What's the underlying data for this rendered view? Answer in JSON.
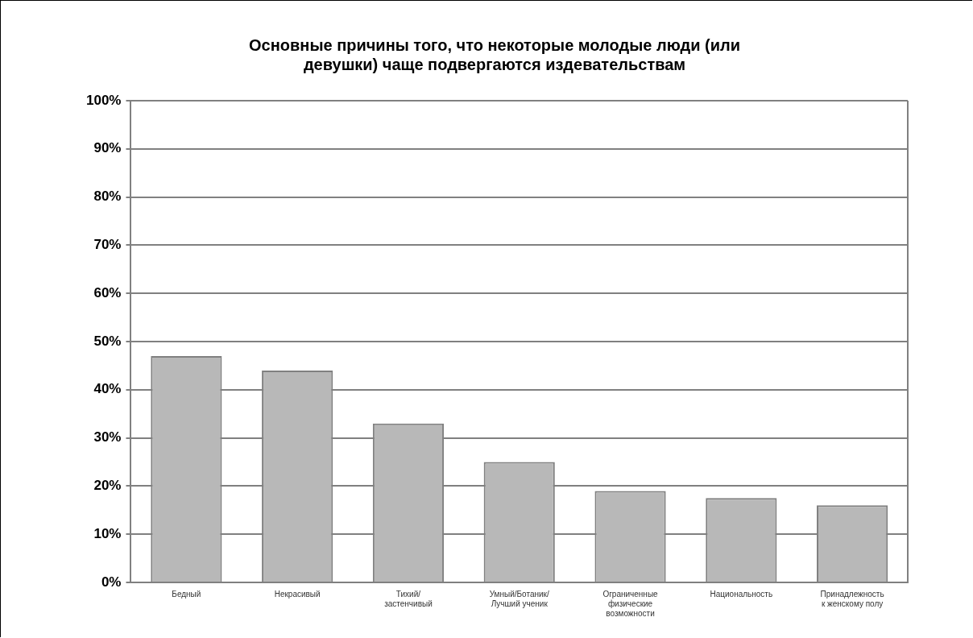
{
  "chart_data": {
    "type": "bar",
    "title": [
      "Основные причины того, что некоторые молодые люди (или",
      "девушки) чаще подвергаются издевательствам"
    ],
    "categories": [
      [
        "Бедный"
      ],
      [
        "Некрасивый"
      ],
      [
        "Тихий/",
        "застенчивый"
      ],
      [
        "Умный/Ботаник/",
        "Лучший ученик"
      ],
      [
        "Ограниченные",
        "физические",
        "возможности"
      ],
      [
        "Национальность"
      ],
      [
        "Принадлежность",
        "к женскому полу"
      ]
    ],
    "values": [
      47,
      44,
      33,
      25,
      19,
      17.5,
      16
    ],
    "color": "#b8b8b8",
    "ylim": [
      0,
      100
    ],
    "yticks": [
      {
        "value": 0,
        "label": "0%"
      },
      {
        "value": 10,
        "label": "10%"
      },
      {
        "value": 20,
        "label": "20%"
      },
      {
        "value": 30,
        "label": "30%"
      },
      {
        "value": 40,
        "label": "40%"
      },
      {
        "value": 50,
        "label": "50%"
      },
      {
        "value": 60,
        "label": "60%"
      },
      {
        "value": 70,
        "label": "70%"
      },
      {
        "value": 80,
        "label": "80%"
      },
      {
        "value": 90,
        "label": "90%"
      },
      {
        "value": 100,
        "label": "100%"
      }
    ],
    "grid": "y",
    "legend": false
  }
}
